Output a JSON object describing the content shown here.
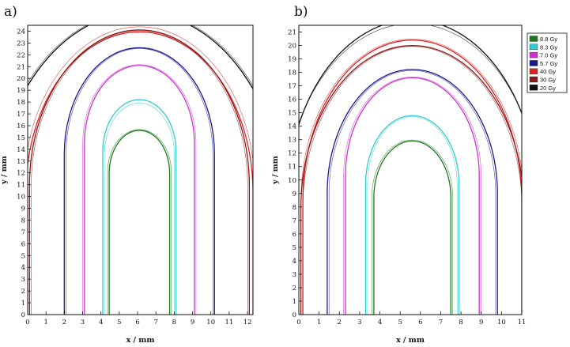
{
  "chart_data": [
    {
      "type": "line",
      "panel_label": "a)",
      "xlabel": "x / mm",
      "ylabel": "y / mm",
      "xlim": [
        0,
        12.3
      ],
      "ylim": [
        0,
        24.5
      ],
      "xticks": [
        0,
        1,
        2,
        3,
        4,
        5,
        6,
        7,
        8,
        9,
        10,
        11,
        12
      ],
      "yticks": [
        0,
        1,
        2,
        3,
        4,
        5,
        6,
        7,
        8,
        9,
        10,
        11,
        12,
        13,
        14,
        15,
        16,
        17,
        18,
        19,
        20,
        21,
        22,
        23,
        24
      ],
      "center_x": 6.1,
      "series": [
        {
          "name": "8.8 Gy",
          "color": "#1e7a1e",
          "half_width": 1.65,
          "top": 15.6
        },
        {
          "name": "8.3 Gy",
          "color": "#33cccc",
          "half_width": 2.0,
          "top": 18.2
        },
        {
          "name": "7.0 Gy",
          "color": "#cc33cc",
          "half_width": 3.0,
          "top": 21.1
        },
        {
          "name": "5.7 Gy",
          "color": "#1a1a8c",
          "half_width": 4.1,
          "top": 22.6
        },
        {
          "name": "40 Gy",
          "color": "#dd2222",
          "half_width": 6.2,
          "top": 24.3
        },
        {
          "name": "30 Gy",
          "color": "#8b1a1a",
          "half_width": 6.0,
          "top": 24.1
        },
        {
          "name": "20 Gy",
          "color": "#111111",
          "half_width": 8.0,
          "top": 26.0
        }
      ]
    },
    {
      "type": "line",
      "panel_label": "b)",
      "xlabel": "x / mm",
      "ylabel": "y / mm",
      "xlim": [
        0,
        11
      ],
      "ylim": [
        0,
        21.5
      ],
      "xticks": [
        0,
        1,
        2,
        3,
        4,
        5,
        6,
        7,
        8,
        9,
        10,
        11
      ],
      "yticks": [
        0,
        1,
        2,
        3,
        4,
        5,
        6,
        7,
        8,
        9,
        10,
        11,
        12,
        13,
        14,
        15,
        16,
        17,
        18,
        19,
        20,
        21
      ],
      "center_x": 5.6,
      "legend_position": "top-right",
      "series": [
        {
          "name": "8.8 Gy",
          "color": "#1e7a1e",
          "half_width": 1.9,
          "top": 12.9
        },
        {
          "name": "8.3 Gy",
          "color": "#33cccc",
          "half_width": 2.3,
          "top": 15.0
        },
        {
          "name": "7.0 Gy",
          "color": "#cc33cc",
          "half_width": 3.3,
          "top": 17.6
        },
        {
          "name": "5.7 Gy",
          "color": "#1a1a8c",
          "half_width": 4.2,
          "top": 18.5
        },
        {
          "name": "40 Gy",
          "color": "#dd2222",
          "half_width": 5.4,
          "top": 20.4
        },
        {
          "name": "30 Gy",
          "color": "#8b1a1a",
          "half_width": 5.5,
          "top": 20.0
        },
        {
          "name": "20 Gy",
          "color": "#111111",
          "half_width": 6.2,
          "top": 21.9
        }
      ]
    }
  ]
}
